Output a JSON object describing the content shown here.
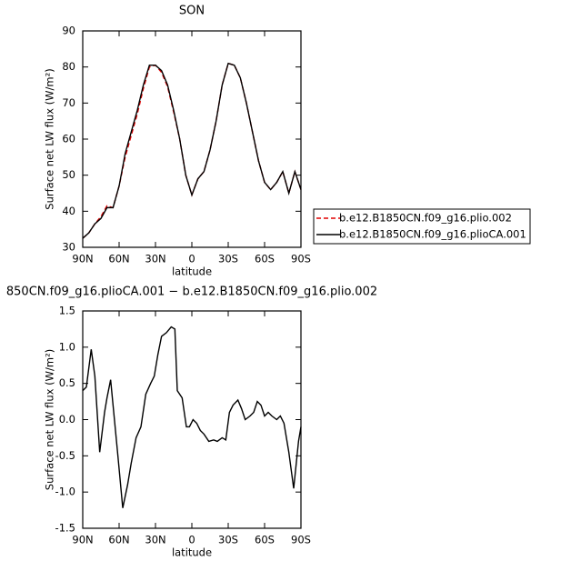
{
  "chart_data": [
    {
      "type": "line",
      "title": "SON",
      "xlabel": "latitude",
      "ylabel": "Surface net LW flux (W/m²)",
      "x": [
        90,
        85,
        80,
        75,
        70,
        65,
        60,
        55,
        50,
        45,
        40,
        35,
        30,
        25,
        20,
        15,
        10,
        5,
        0,
        -5,
        -10,
        -15,
        -20,
        -25,
        -30,
        -35,
        -40,
        -45,
        -50,
        -55,
        -60,
        -65,
        -70,
        -75,
        -80,
        -85,
        -90
      ],
      "series": [
        {
          "name": "b.e12.B1850CN.f09_g16.plio.002",
          "color": "#e00000",
          "linestyle": "dashed",
          "values": [
            32.5,
            34,
            36.5,
            38.5,
            41.5,
            41,
            47,
            55,
            61,
            67,
            74,
            80,
            80.5,
            78.5,
            74.5,
            67.5,
            60,
            50,
            44.5,
            49,
            51,
            57,
            65,
            75,
            81,
            80.5,
            77,
            70,
            62,
            54,
            48,
            46,
            48,
            51,
            45,
            51,
            46
          ]
        },
        {
          "name": "b.e12.B1850CN.f09_g16.plioCA.001",
          "color": "#000000",
          "linestyle": "solid",
          "values": [
            32.5,
            34,
            36.5,
            38,
            41,
            41,
            47,
            56,
            62,
            68,
            75,
            80.5,
            80.5,
            79,
            75,
            68,
            60,
            50,
            44.5,
            49,
            51,
            57,
            65,
            75,
            81,
            80.5,
            77,
            70,
            62,
            54,
            48,
            46,
            48,
            51,
            45,
            51,
            46
          ]
        }
      ],
      "xlim": [
        90,
        -90
      ],
      "xticks": [
        {
          "value": 90,
          "label": "90N"
        },
        {
          "value": 60,
          "label": "60N"
        },
        {
          "value": 30,
          "label": "30N"
        },
        0,
        {
          "value": -30,
          "label": "30S"
        },
        {
          "value": -60,
          "label": "60S"
        },
        {
          "value": -90,
          "label": "90S"
        }
      ],
      "ylim": [
        30,
        90
      ],
      "yticks": [
        30,
        40,
        50,
        60,
        70,
        80,
        90
      ],
      "legend": "outside-right"
    },
    {
      "type": "line",
      "title": "850CN.f09_g16.plioCA.001 − b.e12.B1850CN.f09_g16.plio.002",
      "xlabel": "latitude",
      "ylabel": "Surface net LW flux (W/m²)",
      "x": [
        90,
        87,
        83,
        80,
        76,
        72,
        70,
        67,
        65,
        61,
        57,
        53,
        50,
        46,
        42,
        38,
        34,
        31,
        28,
        25,
        21,
        17,
        14,
        12,
        8,
        4.5,
        2,
        -1,
        -4,
        -7,
        -10,
        -14,
        -18,
        -21,
        -25,
        -28,
        -31,
        -34,
        -38,
        -41,
        -44,
        -48,
        -51,
        -54,
        -57,
        -60,
        -63,
        -66,
        -70,
        -73,
        -76,
        -80,
        -84,
        -88,
        -90
      ],
      "series": [
        {
          "color": "#000000",
          "linestyle": "solid",
          "values": [
            0.4,
            0.45,
            0.97,
            0.6,
            -0.45,
            0.1,
            0.3,
            0.55,
            0.2,
            -0.5,
            -1.22,
            -0.9,
            -0.6,
            -0.25,
            -0.1,
            0.35,
            0.5,
            0.6,
            0.9,
            1.15,
            1.2,
            1.28,
            1.25,
            0.4,
            0.3,
            -0.1,
            -0.1,
            0.0,
            -0.05,
            -0.15,
            -0.2,
            -0.3,
            -0.28,
            -0.3,
            -0.25,
            -0.28,
            0.1,
            0.2,
            0.27,
            0.15,
            0.0,
            0.05,
            0.1,
            0.25,
            0.2,
            0.05,
            0.1,
            0.05,
            0.0,
            0.05,
            -0.05,
            -0.45,
            -0.95,
            -0.3,
            -0.1
          ]
        }
      ],
      "xlim": [
        90,
        -90
      ],
      "xticks": [
        {
          "value": 90,
          "label": "90N"
        },
        {
          "value": 60,
          "label": "60N"
        },
        {
          "value": 30,
          "label": "30N"
        },
        0,
        {
          "value": -30,
          "label": "30S"
        },
        {
          "value": -60,
          "label": "60S"
        },
        {
          "value": -90,
          "label": "90S"
        }
      ],
      "ylim": [
        -1.5,
        1.5
      ],
      "yticks": [
        -1.5,
        {
          "value": -1,
          "label": "-1.0"
        },
        -0.5,
        {
          "value": 0,
          "label": "0.0"
        },
        0.5,
        {
          "value": 1,
          "label": "1.0"
        },
        1.5
      ]
    }
  ]
}
